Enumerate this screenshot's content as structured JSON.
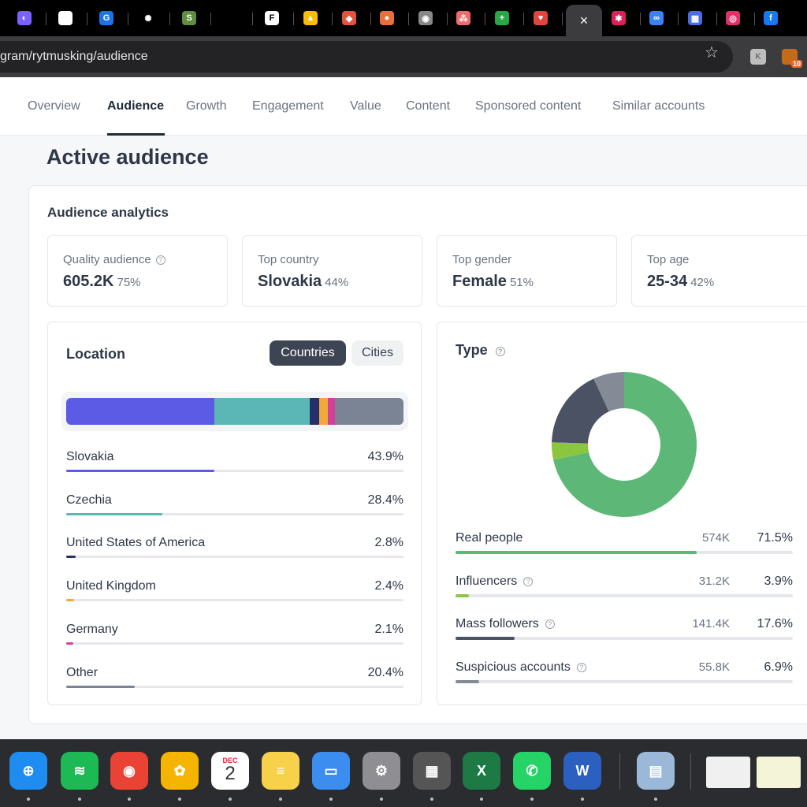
{
  "browser": {
    "tabs": [
      {
        "icon": "purple-circle-icon",
        "color": "#7b61ff",
        "glyph": "◐"
      },
      {
        "icon": "flair-logo-icon",
        "color": "#ffffff",
        "glyph": ""
      },
      {
        "icon": "g-arrow-icon",
        "color": "#1a73e8",
        "glyph": "G"
      },
      {
        "icon": "openai-icon",
        "color": "#000000",
        "glyph": "✺"
      },
      {
        "icon": "shopify-icon",
        "color": "#5e8e3e",
        "glyph": "S"
      },
      {
        "icon": "blank-tab-icon",
        "color": "#000000",
        "glyph": ""
      },
      {
        "icon": "f-letter-icon",
        "color": "#ffffff",
        "glyph": "F"
      },
      {
        "icon": "google-ads-icon",
        "color": "#fbbc04",
        "glyph": "▲"
      },
      {
        "icon": "brave-shield-icon",
        "color": "#e2533b",
        "glyph": "◆"
      },
      {
        "icon": "helmet-icon",
        "color": "#e8703a",
        "glyph": "●"
      },
      {
        "icon": "globe-icon",
        "color": "#888888",
        "glyph": "◉"
      },
      {
        "icon": "asana-icon",
        "color": "#f06a6a",
        "glyph": "⁂"
      },
      {
        "icon": "plus-square-icon",
        "color": "#27a844",
        "glyph": "+"
      },
      {
        "icon": "heart-icon",
        "color": "#e2453c",
        "glyph": "♥"
      },
      {
        "icon": "slack-icon",
        "color": "#e01e5a",
        "glyph": "✱"
      },
      {
        "icon": "sync-link-icon",
        "color": "#3b82f6",
        "glyph": "∞"
      },
      {
        "icon": "grid-table-icon",
        "color": "#4a6ee0",
        "glyph": "▦"
      },
      {
        "icon": "instagram-icon",
        "color": "#e1306c",
        "glyph": "◎"
      },
      {
        "icon": "facebook-icon",
        "color": "#1877f2",
        "glyph": "f"
      }
    ],
    "active_tab_close": "×",
    "url": "gram/rytmusking/audience",
    "ext_badge": "10"
  },
  "nav": {
    "items": [
      "Overview",
      "Audience",
      "Growth",
      "Engagement",
      "Value",
      "Content",
      "Sponsored content",
      "Similar accounts"
    ],
    "active": "Audience"
  },
  "page_title": "Active audience",
  "analytics": {
    "title": "Audience analytics",
    "stats": [
      {
        "label": "Quality audience",
        "value": "605.2K",
        "pct": "75%",
        "help": true
      },
      {
        "label": "Top country",
        "value": "Slovakia",
        "pct": "44%",
        "help": false
      },
      {
        "label": "Top gender",
        "value": "Female",
        "pct": "51%",
        "help": false
      },
      {
        "label": "Top age",
        "value": "25-34",
        "pct": "42%",
        "help": false
      }
    ]
  },
  "location": {
    "title": "Location",
    "toggle": {
      "countries": "Countries",
      "cities": "Cities"
    },
    "rows": [
      {
        "name": "Slovakia",
        "pct": "43.9%",
        "value": 43.9,
        "color": "#5b5be6"
      },
      {
        "name": "Czechia",
        "pct": "28.4%",
        "value": 28.4,
        "color": "#5bb7b5"
      },
      {
        "name": "United States of America",
        "pct": "2.8%",
        "value": 2.8,
        "color": "#25306b"
      },
      {
        "name": "United Kingdom",
        "pct": "2.4%",
        "value": 2.4,
        "color": "#f2a93b"
      },
      {
        "name": "Germany",
        "pct": "2.1%",
        "value": 2.1,
        "color": "#d2429b"
      },
      {
        "name": "Other",
        "pct": "20.4%",
        "value": 20.4,
        "color": "#7b8494"
      }
    ]
  },
  "type": {
    "title": "Type",
    "rows": [
      {
        "name": "Real people",
        "count": "574K",
        "pct": "71.5%",
        "value": 71.5,
        "color": "#5db877",
        "help": false
      },
      {
        "name": "Influencers",
        "count": "31.2K",
        "pct": "3.9%",
        "value": 3.9,
        "color": "#8cc63f",
        "help": true
      },
      {
        "name": "Mass followers",
        "count": "141.4K",
        "pct": "17.6%",
        "value": 17.6,
        "color": "#4b5263",
        "help": true
      },
      {
        "name": "Suspicious accounts",
        "count": "55.8K",
        "pct": "6.9%",
        "value": 6.9,
        "color": "#858b96",
        "help": true
      }
    ]
  },
  "dock": {
    "apps": [
      {
        "name": "safari-icon",
        "color": "#1e8cf0",
        "glyph": "⊕"
      },
      {
        "name": "spotify-icon",
        "color": "#1db954",
        "glyph": "≋"
      },
      {
        "name": "chrome-icon",
        "color": "#ea4335",
        "glyph": "◉"
      },
      {
        "name": "photos-icon",
        "color": "#f4b400",
        "glyph": "✿"
      },
      {
        "name": "calendar-icon",
        "color": "#ffffff",
        "glyph": "2"
      },
      {
        "name": "notes-icon",
        "color": "#f7d14a",
        "glyph": "≡"
      },
      {
        "name": "keynote-icon",
        "color": "#3b8ef0",
        "glyph": "▭"
      },
      {
        "name": "system-settings-icon",
        "color": "#8e8e93",
        "glyph": "⚙"
      },
      {
        "name": "calculator-icon",
        "color": "#555555",
        "glyph": "▦"
      },
      {
        "name": "excel-icon",
        "color": "#1d7a45",
        "glyph": "X"
      },
      {
        "name": "whatsapp-icon",
        "color": "#25d366",
        "glyph": "✆"
      },
      {
        "name": "word-icon",
        "color": "#2b5fc0",
        "glyph": "W"
      },
      {
        "name": "preview-icon",
        "color": "#9cb8d8",
        "glyph": "▤"
      }
    ],
    "calendar_month": "DEC",
    "calendar_day": "2"
  }
}
